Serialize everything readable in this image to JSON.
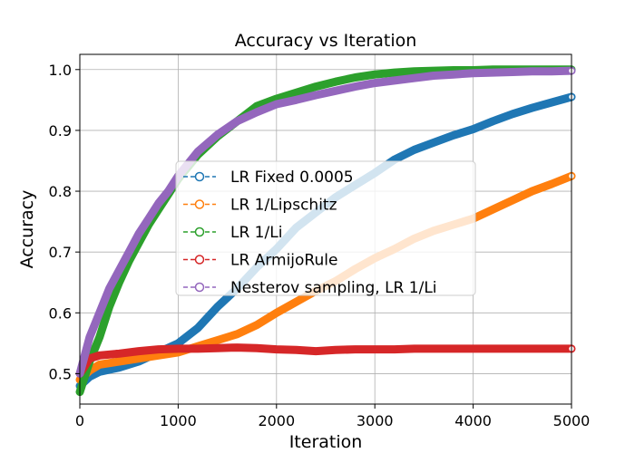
{
  "chart_data": {
    "type": "line",
    "title": "Accuracy vs Iteration",
    "xlabel": "Iteration",
    "ylabel": "Accuracy",
    "xlim": [
      0,
      5000
    ],
    "ylim": [
      0.45,
      1.025
    ],
    "xticks": [
      0,
      1000,
      2000,
      3000,
      4000,
      5000
    ],
    "yticks": [
      0.5,
      0.6,
      0.7,
      0.8,
      0.9,
      1.0
    ],
    "xtick_labels": [
      "0",
      "1000",
      "2000",
      "3000",
      "4000",
      "5000"
    ],
    "ytick_labels": [
      "0.5",
      "0.6",
      "0.7",
      "0.8",
      "0.9",
      "1.0"
    ],
    "grid": true,
    "legend_position": "center",
    "series": [
      {
        "name": "LR Fixed 0.0005",
        "color": "#1f77b4",
        "x": [
          0,
          100,
          200,
          400,
          600,
          800,
          1000,
          1200,
          1400,
          1600,
          1800,
          2000,
          2200,
          2400,
          2600,
          2800,
          3000,
          3200,
          3400,
          3600,
          3800,
          4000,
          4200,
          4400,
          4600,
          4800,
          5000
        ],
        "y": [
          0.48,
          0.495,
          0.503,
          0.51,
          0.52,
          0.535,
          0.55,
          0.575,
          0.61,
          0.64,
          0.675,
          0.705,
          0.74,
          0.765,
          0.79,
          0.81,
          0.83,
          0.852,
          0.868,
          0.88,
          0.892,
          0.902,
          0.915,
          0.927,
          0.937,
          0.946,
          0.955
        ]
      },
      {
        "name": "LR 1/Lipschitz",
        "color": "#ff7f0e",
        "x": [
          0,
          100,
          200,
          400,
          600,
          800,
          1000,
          1200,
          1400,
          1600,
          1800,
          2000,
          2200,
          2400,
          2600,
          2800,
          3000,
          3200,
          3400,
          3600,
          3800,
          4000,
          4200,
          4400,
          4600,
          4800,
          5000
        ],
        "y": [
          0.49,
          0.505,
          0.515,
          0.52,
          0.525,
          0.53,
          0.535,
          0.545,
          0.555,
          0.565,
          0.58,
          0.6,
          0.618,
          0.636,
          0.652,
          0.672,
          0.69,
          0.705,
          0.722,
          0.735,
          0.745,
          0.755,
          0.77,
          0.785,
          0.8,
          0.812,
          0.825
        ]
      },
      {
        "name": "LR 1/Li",
        "color": "#2ca02c",
        "x": [
          0,
          100,
          200,
          300,
          400,
          500,
          600,
          700,
          800,
          900,
          1000,
          1200,
          1400,
          1600,
          1800,
          2000,
          2200,
          2400,
          2600,
          2800,
          3000,
          3200,
          3400,
          3600,
          3800,
          4000,
          4200,
          4400,
          4600,
          4800,
          5000
        ],
        "y": [
          0.47,
          0.52,
          0.56,
          0.61,
          0.65,
          0.685,
          0.715,
          0.745,
          0.77,
          0.795,
          0.82,
          0.86,
          0.89,
          0.915,
          0.94,
          0.952,
          0.962,
          0.972,
          0.98,
          0.987,
          0.992,
          0.995,
          0.997,
          0.998,
          0.999,
          0.999,
          1.0,
          1.0,
          1.0,
          1.0,
          1.0
        ]
      },
      {
        "name": "LR ArmijoRule",
        "color": "#d62728",
        "x": [
          0,
          100,
          200,
          400,
          600,
          800,
          1000,
          1200,
          1400,
          1600,
          1800,
          2000,
          2200,
          2400,
          2600,
          2800,
          3000,
          3200,
          3400,
          3600,
          3800,
          4000,
          4200,
          4400,
          4600,
          4800,
          5000
        ],
        "y": [
          0.5,
          0.525,
          0.53,
          0.533,
          0.537,
          0.54,
          0.541,
          0.541,
          0.542,
          0.543,
          0.542,
          0.54,
          0.539,
          0.537,
          0.539,
          0.54,
          0.54,
          0.54,
          0.541,
          0.541,
          0.541,
          0.541,
          0.541,
          0.541,
          0.541,
          0.541,
          0.541
        ]
      },
      {
        "name": "Nesterov sampling, LR 1/Li",
        "color": "#9467bd",
        "x": [
          0,
          100,
          200,
          300,
          400,
          500,
          600,
          700,
          800,
          900,
          1000,
          1200,
          1400,
          1600,
          1800,
          2000,
          2200,
          2400,
          2600,
          2800,
          3000,
          3200,
          3400,
          3600,
          3800,
          4000,
          4200,
          4400,
          4600,
          4800,
          5000
        ],
        "y": [
          0.5,
          0.56,
          0.6,
          0.64,
          0.67,
          0.7,
          0.73,
          0.755,
          0.78,
          0.8,
          0.825,
          0.865,
          0.893,
          0.915,
          0.93,
          0.943,
          0.95,
          0.958,
          0.965,
          0.972,
          0.978,
          0.982,
          0.986,
          0.99,
          0.992,
          0.994,
          0.995,
          0.996,
          0.997,
          0.997,
          0.998
        ]
      }
    ]
  }
}
